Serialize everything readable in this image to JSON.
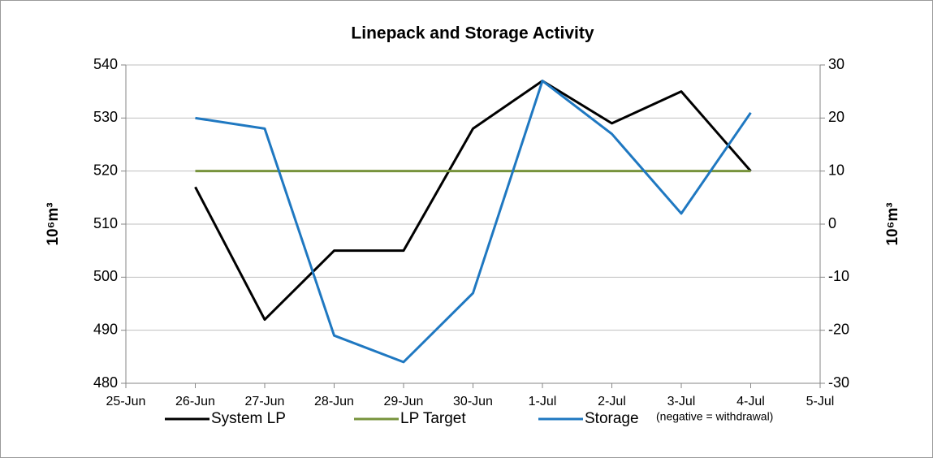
{
  "chart_data": {
    "type": "line",
    "title": "Linepack and Storage Activity",
    "y_label": "10⁶m³",
    "y2_label": "10⁶m³",
    "categories": [
      "25-Jun",
      "26-Jun",
      "27-Jun",
      "28-Jun",
      "29-Jun",
      "30-Jun",
      "1-Jul",
      "2-Jul",
      "3-Jul",
      "4-Jul",
      "5-Jul"
    ],
    "series": [
      {
        "name": "System LP",
        "color": "#000000",
        "values": [
          null,
          517,
          492,
          505,
          505,
          528,
          537,
          529,
          535,
          520,
          null
        ]
      },
      {
        "name": "LP Target",
        "color": "#77933c",
        "values": [
          null,
          520,
          520,
          520,
          520,
          520,
          520,
          520,
          520,
          520,
          null
        ]
      },
      {
        "name": "Storage",
        "color": "#1f78c1",
        "axis": "y2",
        "values": [
          null,
          20,
          18,
          -21,
          -26,
          -13,
          27,
          17,
          2,
          21,
          null
        ]
      }
    ],
    "legend_note": "(negative = withdrawal)",
    "ylim": [
      480,
      540
    ],
    "yticks": [
      480,
      490,
      500,
      510,
      520,
      530,
      540
    ],
    "y2lim": [
      -30,
      30
    ],
    "y2ticks": [
      -30,
      -20,
      -10,
      0,
      10,
      20,
      30
    ],
    "grid": true,
    "legend": "bottom"
  }
}
